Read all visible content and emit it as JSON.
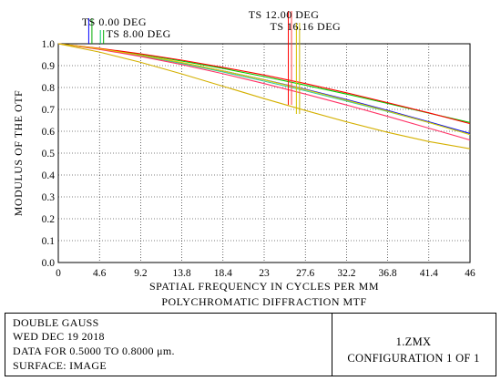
{
  "chart_data": {
    "type": "line",
    "title": "POLYCHROMATIC DIFFRACTION MTF",
    "xlabel": "SPATIAL FREQUENCY IN CYCLES PER MM",
    "ylabel": "MODULUS OF THE OTF",
    "xlim": [
      0,
      46
    ],
    "ylim": [
      0,
      1
    ],
    "xticks": [
      "0",
      "4.6",
      "9.2",
      "13.8",
      "18.4",
      "23",
      "27.6",
      "32.2",
      "36.8",
      "41.4",
      "46"
    ],
    "yticks": [
      "0.0",
      "0.1",
      "0.2",
      "0.3",
      "0.4",
      "0.5",
      "0.6",
      "0.7",
      "0.8",
      "0.9",
      "1.0"
    ],
    "grid": true,
    "field_labels": [
      {
        "text": "TS  0.00 DEG",
        "x": 3.4,
        "colors": [
          "#0000ff",
          "#00aa00"
        ]
      },
      {
        "text": "TS  8.00 DEG",
        "x": 4.7,
        "colors": [
          "#00cc66",
          "#00aa00"
        ]
      },
      {
        "text": "TS  12.00 DEG",
        "x": 25.7,
        "colors": [
          "#ff0000",
          "#ff4444"
        ]
      },
      {
        "text": "TS  16.16 DEG",
        "x": 26.6,
        "colors": [
          "#d4c000",
          "#c8b400"
        ]
      }
    ],
    "x": [
      0,
      4.6,
      9.2,
      13.8,
      18.4,
      23,
      27.6,
      32.2,
      36.8,
      41.4,
      46
    ],
    "series": [
      {
        "color": "#0000ff",
        "values": [
          1.0,
          0.976,
          0.947,
          0.913,
          0.876,
          0.836,
          0.792,
          0.745,
          0.695,
          0.643,
          0.59
        ]
      },
      {
        "color": "#00cc00",
        "values": [
          1.0,
          0.978,
          0.952,
          0.921,
          0.887,
          0.85,
          0.811,
          0.77,
          0.727,
          0.683,
          0.64
        ]
      },
      {
        "color": "#33cc99",
        "values": [
          1.0,
          0.975,
          0.945,
          0.91,
          0.871,
          0.829,
          0.785,
          0.738,
          0.69,
          0.64,
          0.585
        ]
      },
      {
        "color": "#ff0000",
        "values": [
          1.0,
          0.979,
          0.954,
          0.925,
          0.892,
          0.857,
          0.818,
          0.776,
          0.731,
          0.684,
          0.635
        ]
      },
      {
        "color": "#ff3366",
        "values": [
          1.0,
          0.974,
          0.942,
          0.905,
          0.863,
          0.818,
          0.77,
          0.72,
          0.668,
          0.614,
          0.56
        ]
      },
      {
        "color": "#e0c800",
        "values": [
          1.0,
          0.977,
          0.948,
          0.914,
          0.876,
          0.835,
          0.79,
          0.742,
          0.692,
          0.64,
          0.585
        ]
      },
      {
        "color": "#d4b000",
        "values": [
          1.0,
          0.962,
          0.915,
          0.862,
          0.806,
          0.749,
          0.695,
          0.643,
          0.595,
          0.553,
          0.52
        ]
      }
    ]
  },
  "info": {
    "line1": "DOUBLE GAUSS",
    "line2": "WED DEC 19 2018",
    "line3": "DATA FOR 0.5000 TO 0.8000 μm.",
    "line4": "SURFACE: IMAGE",
    "file": "1.ZMX",
    "config": "CONFIGURATION 1 OF 1"
  }
}
